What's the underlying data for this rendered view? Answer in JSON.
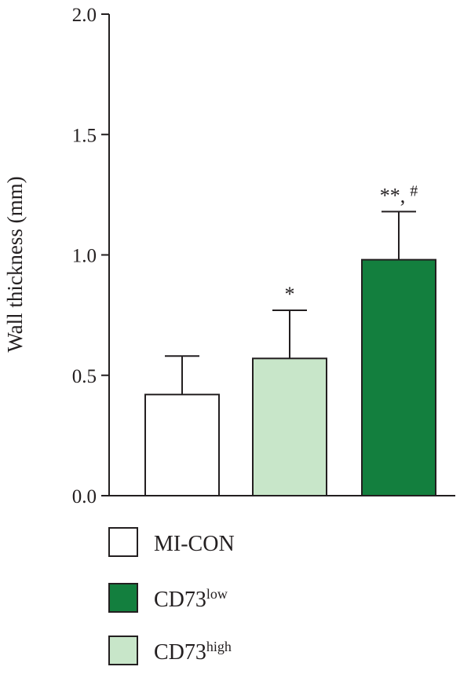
{
  "chart_data": {
    "type": "bar",
    "ylabel": "Wall thickness (mm)",
    "xlabel": "",
    "ylim": [
      0,
      2.0
    ],
    "yticks": [
      "0.0",
      "0.5",
      "1.0",
      "1.5",
      "2.0"
    ],
    "ytick_values": [
      0,
      0.5,
      1.0,
      1.5,
      2.0
    ],
    "grid": false,
    "legend_placement": "bottom",
    "categories": [
      "MI-CON",
      "CD73high",
      "CD73low"
    ],
    "bars": [
      {
        "group": "MI-CON",
        "value": 0.42,
        "error": 0.16,
        "color": "#ffffff",
        "annotation": ""
      },
      {
        "group": "CD73high",
        "value": 0.57,
        "error": 0.2,
        "color": "#c8e6c9",
        "annotation": "*"
      },
      {
        "group": "CD73low",
        "value": 0.98,
        "error": 0.2,
        "color": "#137f3e",
        "annotation": "**,",
        "annotation_sup": "#"
      }
    ],
    "legend": [
      {
        "base": "MI-CON",
        "sup": "",
        "color": "#ffffff"
      },
      {
        "base": "CD73",
        "sup": "low",
        "color": "#137f3e"
      },
      {
        "base": "CD73",
        "sup": "high",
        "color": "#c8e6c9"
      }
    ]
  }
}
